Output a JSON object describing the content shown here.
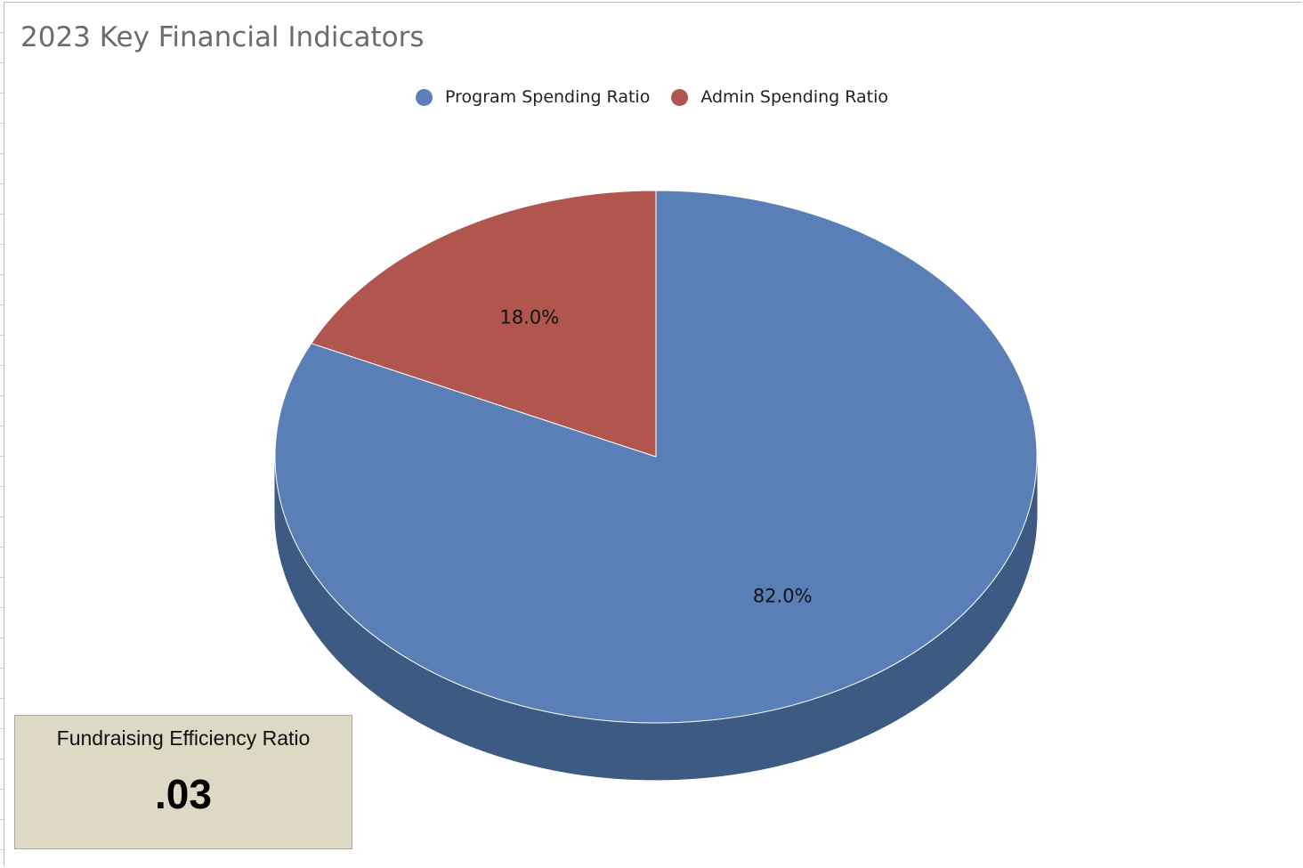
{
  "chart_data": {
    "type": "pie",
    "title": "2023 Key Financial Indicators",
    "legend_position": "top",
    "series": [
      {
        "name": "Program Spending Ratio",
        "value": 82.0,
        "label": "82.0%",
        "color": "#5a7fb6",
        "side_color": "#3d5a82"
      },
      {
        "name": "Admin Spending Ratio",
        "value": 18.0,
        "label": "18.0%",
        "color": "#b0564f",
        "side_color": "#7e3d38"
      }
    ]
  },
  "kpi": {
    "label": "Fundraising Efficiency Ratio",
    "value": ".03"
  }
}
